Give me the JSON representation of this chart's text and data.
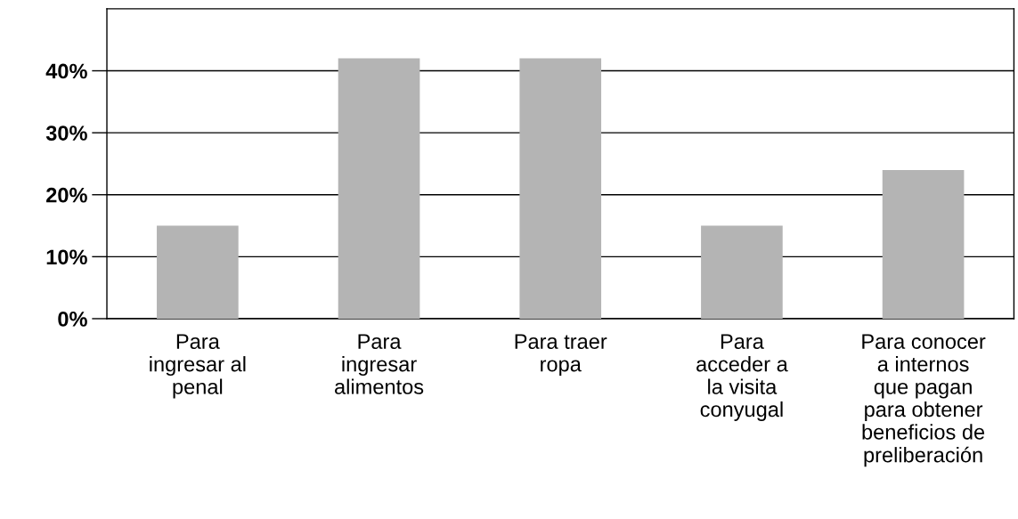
{
  "chart_data": {
    "type": "bar",
    "categories": [
      "Para\ningresar al\npenal",
      "Para\ningresar\nalimentos",
      "Para traer\nropa",
      "Para\nacceder a\nla visita\nconyugal",
      "Para conocer\na internos\nque pagan\npara obtener\nbeneficios de\npreliberación"
    ],
    "values": [
      15,
      42,
      42,
      15,
      24
    ],
    "color": "#b4b4b4",
    "ylim": [
      0,
      50
    ],
    "yticks": [
      {
        "value": 0,
        "label": "0%"
      },
      {
        "value": 10,
        "label": "10%"
      },
      {
        "value": 20,
        "label": "20%"
      },
      {
        "value": 30,
        "label": "30%"
      },
      {
        "value": 40,
        "label": "40%"
      }
    ],
    "grid": "y"
  }
}
